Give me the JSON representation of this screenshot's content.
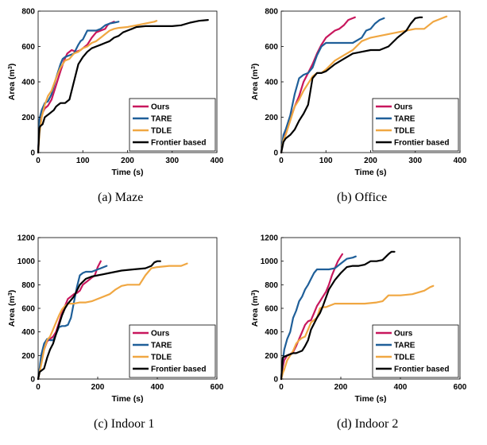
{
  "colors": {
    "ours": "#c8175d",
    "tare": "#1f5f99",
    "tdle": "#f0a742",
    "frontier": "#000000"
  },
  "chart_data": [
    {
      "type": "line",
      "caption": "(a)  Maze",
      "xlabel": "Time (s)",
      "ylabel": "Area (m",
      "ylabel_sup": "3",
      "ylabel_end": ")",
      "xlim": [
        0,
        400
      ],
      "ylim": [
        0,
        800
      ],
      "xticks": [
        "0",
        "100",
        "200",
        "300",
        "400"
      ],
      "yticks": [
        "0",
        "200",
        "400",
        "600",
        "800"
      ],
      "legend_position": "bottom-right",
      "series": [
        {
          "name": "Ours",
          "color": "#c8175d",
          "x": [
            0,
            3,
            8,
            15,
            22,
            30,
            40,
            50,
            58,
            65,
            75,
            85,
            95,
            100,
            110,
            120,
            130,
            140,
            150,
            155,
            160,
            165,
            170
          ],
          "y": [
            0,
            150,
            215,
            250,
            265,
            300,
            380,
            460,
            520,
            560,
            580,
            570,
            580,
            590,
            610,
            650,
            680,
            690,
            700,
            720,
            730,
            735,
            740
          ]
        },
        {
          "name": "TARE",
          "color": "#1f5f99",
          "x": [
            0,
            3,
            8,
            15,
            22,
            30,
            40,
            50,
            55,
            60,
            70,
            80,
            90,
            95,
            100,
            110,
            120,
            130,
            140,
            150,
            160,
            170,
            180
          ],
          "y": [
            0,
            190,
            240,
            280,
            290,
            330,
            420,
            500,
            530,
            540,
            550,
            560,
            610,
            630,
            640,
            690,
            690,
            690,
            700,
            720,
            730,
            735,
            740
          ]
        },
        {
          "name": "TDLE",
          "color": "#f0a742",
          "x": [
            0,
            3,
            8,
            15,
            22,
            30,
            40,
            50,
            60,
            70,
            80,
            90,
            100,
            110,
            120,
            130,
            140,
            150,
            160,
            170,
            180,
            200,
            220,
            240,
            260,
            265
          ],
          "y": [
            0,
            110,
            200,
            270,
            320,
            350,
            420,
            480,
            520,
            530,
            560,
            570,
            590,
            600,
            620,
            630,
            650,
            670,
            690,
            700,
            705,
            710,
            720,
            730,
            740,
            745
          ]
        },
        {
          "name": "Frontier based",
          "color": "#000000",
          "x": [
            0,
            3,
            5,
            10,
            15,
            20,
            25,
            30,
            35,
            40,
            45,
            50,
            55,
            60,
            70,
            80,
            90,
            100,
            110,
            120,
            130,
            140,
            150,
            160,
            170,
            180,
            190,
            200,
            210,
            220,
            240,
            260,
            280,
            300,
            320,
            340,
            360,
            380
          ],
          "y": [
            0,
            140,
            150,
            160,
            200,
            210,
            220,
            230,
            240,
            260,
            270,
            280,
            280,
            280,
            300,
            400,
            500,
            540,
            570,
            590,
            600,
            610,
            620,
            630,
            650,
            660,
            680,
            690,
            700,
            710,
            715,
            715,
            715,
            715,
            720,
            735,
            745,
            750
          ]
        }
      ]
    },
    {
      "type": "line",
      "caption": "(b)  Office",
      "xlabel": "Time (s)",
      "ylabel": "Area (m",
      "ylabel_sup": "3",
      "ylabel_end": ")",
      "xlim": [
        0,
        400
      ],
      "ylim": [
        0,
        800
      ],
      "xticks": [
        "0",
        "100",
        "200",
        "300",
        "400"
      ],
      "yticks": [
        "0",
        "200",
        "400",
        "600",
        "800"
      ],
      "legend_position": "bottom-right",
      "series": [
        {
          "name": "Ours",
          "color": "#c8175d",
          "x": [
            0,
            5,
            10,
            20,
            30,
            40,
            50,
            60,
            70,
            80,
            90,
            100,
            110,
            120,
            130,
            140,
            150,
            160,
            165
          ],
          "y": [
            0,
            90,
            110,
            190,
            260,
            320,
            400,
            450,
            500,
            560,
            610,
            650,
            670,
            690,
            700,
            720,
            750,
            760,
            765
          ]
        },
        {
          "name": "TARE",
          "color": "#1f5f99",
          "x": [
            0,
            5,
            10,
            20,
            30,
            40,
            50,
            60,
            70,
            80,
            90,
            100,
            120,
            140,
            160,
            180,
            190,
            200,
            210,
            220,
            230
          ],
          "y": [
            0,
            100,
            130,
            210,
            330,
            420,
            440,
            450,
            480,
            550,
            600,
            620,
            620,
            620,
            620,
            650,
            690,
            700,
            730,
            750,
            760
          ]
        },
        {
          "name": "TDLE",
          "color": "#f0a742",
          "x": [
            0,
            5,
            10,
            20,
            30,
            40,
            50,
            60,
            70,
            80,
            90,
            100,
            120,
            140,
            160,
            180,
            200,
            220,
            240,
            260,
            280,
            300,
            320,
            340,
            350,
            360,
            370
          ],
          "y": [
            0,
            70,
            100,
            180,
            260,
            300,
            350,
            390,
            430,
            450,
            450,
            470,
            520,
            550,
            580,
            630,
            650,
            660,
            670,
            680,
            690,
            700,
            700,
            740,
            750,
            760,
            770
          ]
        },
        {
          "name": "Frontier based",
          "color": "#000000",
          "x": [
            0,
            5,
            10,
            20,
            30,
            40,
            50,
            60,
            70,
            80,
            90,
            100,
            120,
            140,
            160,
            180,
            200,
            220,
            240,
            260,
            280,
            290,
            300,
            310,
            315
          ],
          "y": [
            0,
            60,
            80,
            100,
            130,
            180,
            220,
            270,
            420,
            450,
            450,
            460,
            500,
            530,
            560,
            570,
            580,
            580,
            600,
            650,
            690,
            730,
            760,
            765,
            765
          ]
        }
      ]
    },
    {
      "type": "line",
      "caption": "(c)  Indoor 1",
      "xlabel": "Time (s)",
      "ylabel": "Area (m",
      "ylabel_sup": "3",
      "ylabel_end": ")",
      "xlim": [
        0,
        600
      ],
      "ylim": [
        0,
        1200
      ],
      "xticks": [
        "0",
        "200",
        "400",
        "600"
      ],
      "yticks": [
        "0",
        "200",
        "400",
        "600",
        "800",
        "1000",
        "1200"
      ],
      "legend_position": "bottom-right",
      "series": [
        {
          "name": "Ours",
          "color": "#c8175d",
          "x": [
            0,
            5,
            10,
            20,
            30,
            40,
            50,
            60,
            70,
            80,
            90,
            100,
            110,
            120,
            130,
            140,
            150,
            160,
            170,
            180,
            190,
            200,
            210
          ],
          "y": [
            0,
            80,
            150,
            250,
            320,
            340,
            360,
            400,
            480,
            560,
            620,
            680,
            700,
            720,
            730,
            750,
            800,
            820,
            840,
            860,
            880,
            950,
            1000
          ]
        },
        {
          "name": "TARE",
          "color": "#1f5f99",
          "x": [
            0,
            5,
            10,
            20,
            30,
            40,
            50,
            60,
            70,
            80,
            90,
            100,
            110,
            120,
            130,
            140,
            150,
            160,
            170,
            180,
            190,
            200,
            210,
            220,
            230
          ],
          "y": [
            0,
            90,
            200,
            300,
            340,
            330,
            330,
            380,
            440,
            450,
            450,
            460,
            520,
            650,
            780,
            880,
            900,
            910,
            910,
            910,
            920,
            930,
            940,
            950,
            960
          ]
        },
        {
          "name": "TDLE",
          "color": "#f0a742",
          "x": [
            0,
            5,
            10,
            20,
            30,
            40,
            50,
            60,
            70,
            80,
            90,
            100,
            120,
            140,
            160,
            180,
            200,
            240,
            260,
            280,
            300,
            340,
            360,
            380,
            400,
            440,
            480,
            500
          ],
          "y": [
            0,
            60,
            120,
            250,
            330,
            360,
            420,
            480,
            540,
            590,
            620,
            640,
            640,
            650,
            650,
            660,
            680,
            720,
            760,
            790,
            800,
            800,
            880,
            940,
            950,
            960,
            960,
            980
          ]
        },
        {
          "name": "Frontier based",
          "color": "#000000",
          "x": [
            0,
            5,
            10,
            20,
            30,
            40,
            50,
            60,
            70,
            80,
            90,
            100,
            120,
            140,
            160,
            180,
            200,
            240,
            280,
            320,
            360,
            380,
            390,
            400,
            410
          ],
          "y": [
            0,
            60,
            70,
            90,
            180,
            250,
            300,
            380,
            460,
            540,
            600,
            640,
            700,
            800,
            850,
            870,
            880,
            900,
            920,
            930,
            940,
            960,
            990,
            1000,
            1000
          ]
        }
      ]
    },
    {
      "type": "line",
      "caption": "(d)  Indoor 2",
      "xlabel": "Time (s)",
      "ylabel": "Area (m",
      "ylabel_sup": "3",
      "ylabel_end": ")",
      "xlim": [
        0,
        600
      ],
      "ylim": [
        0,
        1200
      ],
      "xticks": [
        "0",
        "200",
        "400",
        "600"
      ],
      "yticks": [
        "0",
        "200",
        "400",
        "600",
        "800",
        "1000",
        "1200"
      ],
      "legend_position": "bottom-right",
      "series": [
        {
          "name": "Ours",
          "color": "#c8175d",
          "x": [
            0,
            5,
            10,
            20,
            30,
            40,
            50,
            60,
            70,
            80,
            90,
            100,
            110,
            120,
            130,
            140,
            150,
            160,
            170,
            180,
            190,
            200,
            205
          ],
          "y": [
            0,
            100,
            160,
            200,
            210,
            230,
            280,
            340,
            400,
            460,
            490,
            500,
            560,
            620,
            660,
            700,
            740,
            800,
            880,
            940,
            1000,
            1040,
            1060
          ]
        },
        {
          "name": "TARE",
          "color": "#1f5f99",
          "x": [
            0,
            5,
            10,
            20,
            30,
            40,
            50,
            60,
            70,
            80,
            90,
            100,
            110,
            120,
            130,
            140,
            160,
            180,
            200,
            220,
            240,
            250
          ],
          "y": [
            0,
            150,
            250,
            340,
            400,
            520,
            580,
            660,
            700,
            760,
            800,
            850,
            900,
            930,
            930,
            930,
            930,
            940,
            980,
            1020,
            1030,
            1040
          ]
        },
        {
          "name": "TDLE",
          "color": "#f0a742",
          "x": [
            0,
            5,
            10,
            20,
            30,
            40,
            50,
            60,
            70,
            80,
            90,
            100,
            110,
            120,
            130,
            140,
            150,
            160,
            180,
            200,
            240,
            280,
            320,
            340,
            360,
            400,
            440,
            480,
            500,
            510
          ],
          "y": [
            0,
            50,
            80,
            160,
            200,
            240,
            300,
            330,
            350,
            360,
            420,
            480,
            500,
            520,
            600,
            610,
            610,
            620,
            640,
            640,
            640,
            640,
            650,
            660,
            710,
            710,
            720,
            750,
            780,
            790
          ]
        },
        {
          "name": "Frontier based",
          "color": "#000000",
          "x": [
            0,
            5,
            10,
            20,
            30,
            40,
            50,
            60,
            70,
            80,
            90,
            100,
            110,
            120,
            130,
            140,
            160,
            180,
            200,
            220,
            240,
            260,
            280,
            300,
            320,
            340,
            360,
            370,
            380
          ],
          "y": [
            0,
            180,
            190,
            200,
            210,
            220,
            220,
            230,
            240,
            280,
            330,
            420,
            470,
            520,
            560,
            620,
            760,
            840,
            900,
            950,
            960,
            960,
            970,
            1000,
            1000,
            1010,
            1060,
            1080,
            1080
          ]
        }
      ]
    }
  ]
}
